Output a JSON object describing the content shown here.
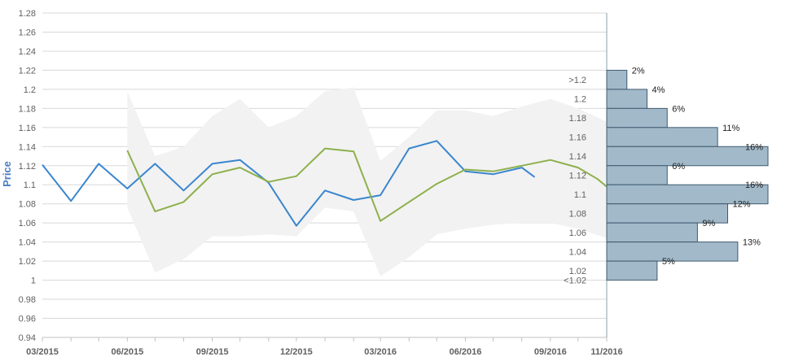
{
  "chart_data": {
    "type": "line",
    "ylabel": "Price",
    "ylim": [
      0.94,
      1.28
    ],
    "yticks": [
      "0.94",
      "0.96",
      "0.98",
      "1",
      "1.02",
      "1.04",
      "1.06",
      "1.08",
      "1.1",
      "1.12",
      "1.14",
      "1.16",
      "1.18",
      "1.2",
      "1.22",
      "1.24",
      "1.26",
      "1.28"
    ],
    "xlim": [
      "2015-03-01",
      "2016-11-01"
    ],
    "xtick_labels": [
      {
        "date": "2015-03-01",
        "label": "03/2015"
      },
      {
        "date": "2015-06-01",
        "label": "06/2015"
      },
      {
        "date": "2015-09-01",
        "label": "09/2015"
      },
      {
        "date": "2015-12-01",
        "label": "12/2015"
      },
      {
        "date": "2016-03-01",
        "label": "03/2016"
      },
      {
        "date": "2016-06-01",
        "label": "06/2016"
      },
      {
        "date": "2016-09-01",
        "label": "09/2016"
      },
      {
        "date": "2016-11-01",
        "label": "11/2016"
      }
    ],
    "grid": true,
    "series": [
      {
        "color": "#3a86cf",
        "points": [
          {
            "x": "2015-03-01",
            "y": 1.121
          },
          {
            "x": "2015-04-01",
            "y": 1.083
          },
          {
            "x": "2015-05-01",
            "y": 1.122
          },
          {
            "x": "2015-06-01",
            "y": 1.096
          },
          {
            "x": "2015-07-01",
            "y": 1.122
          },
          {
            "x": "2015-08-01",
            "y": 1.094
          },
          {
            "x": "2015-09-01",
            "y": 1.122
          },
          {
            "x": "2015-10-01",
            "y": 1.126
          },
          {
            "x": "2015-11-01",
            "y": 1.102
          },
          {
            "x": "2015-12-01",
            "y": 1.057
          },
          {
            "x": "2016-01-01",
            "y": 1.094
          },
          {
            "x": "2016-02-01",
            "y": 1.084
          },
          {
            "x": "2016-03-01",
            "y": 1.089
          },
          {
            "x": "2016-04-01",
            "y": 1.138
          },
          {
            "x": "2016-05-01",
            "y": 1.146
          },
          {
            "x": "2016-06-01",
            "y": 1.114
          },
          {
            "x": "2016-07-01",
            "y": 1.111
          },
          {
            "x": "2016-08-01",
            "y": 1.118
          },
          {
            "x": "2016-08-15",
            "y": 1.108
          }
        ]
      },
      {
        "color": "#8db04c",
        "points": [
          {
            "x": "2015-06-01",
            "y": 1.136
          },
          {
            "x": "2015-07-01",
            "y": 1.072
          },
          {
            "x": "2015-08-01",
            "y": 1.082
          },
          {
            "x": "2015-09-01",
            "y": 1.111
          },
          {
            "x": "2015-10-01",
            "y": 1.118
          },
          {
            "x": "2015-11-01",
            "y": 1.103
          },
          {
            "x": "2015-12-01",
            "y": 1.109
          },
          {
            "x": "2016-01-01",
            "y": 1.138
          },
          {
            "x": "2016-02-01",
            "y": 1.135
          },
          {
            "x": "2016-03-01",
            "y": 1.062
          },
          {
            "x": "2016-04-01",
            "y": 1.082
          },
          {
            "x": "2016-05-01",
            "y": 1.101
          },
          {
            "x": "2016-06-01",
            "y": 1.116
          },
          {
            "x": "2016-07-01",
            "y": 1.114
          },
          {
            "x": "2016-08-01",
            "y": 1.12
          },
          {
            "x": "2016-09-01",
            "y": 1.126
          },
          {
            "x": "2016-10-01",
            "y": 1.118
          },
          {
            "x": "2016-10-22",
            "y": 1.106
          },
          {
            "x": "2016-11-01",
            "y": 1.098
          }
        ]
      }
    ],
    "band": {
      "color": "#f2f2f2",
      "points": [
        {
          "x": "2015-06-01",
          "hi": 1.198,
          "lo": 1.076
        },
        {
          "x": "2015-07-01",
          "hi": 1.13,
          "lo": 1.008
        },
        {
          "x": "2015-08-01",
          "hi": 1.14,
          "lo": 1.022
        },
        {
          "x": "2015-09-01",
          "hi": 1.172,
          "lo": 1.046
        },
        {
          "x": "2015-10-01",
          "hi": 1.19,
          "lo": 1.046
        },
        {
          "x": "2015-11-01",
          "hi": 1.16,
          "lo": 1.048
        },
        {
          "x": "2015-12-01",
          "hi": 1.172,
          "lo": 1.046
        },
        {
          "x": "2016-01-01",
          "hi": 1.198,
          "lo": 1.076
        },
        {
          "x": "2016-02-01",
          "hi": 1.202,
          "lo": 1.072
        },
        {
          "x": "2016-03-01",
          "hi": 1.125,
          "lo": 1.004
        },
        {
          "x": "2016-04-01",
          "hi": 1.15,
          "lo": 1.024
        },
        {
          "x": "2016-05-01",
          "hi": 1.178,
          "lo": 1.048
        },
        {
          "x": "2016-06-01",
          "hi": 1.178,
          "lo": 1.054
        },
        {
          "x": "2016-07-01",
          "hi": 1.172,
          "lo": 1.058
        },
        {
          "x": "2016-08-01",
          "hi": 1.182,
          "lo": 1.06
        },
        {
          "x": "2016-09-01",
          "hi": 1.19,
          "lo": 1.06
        },
        {
          "x": "2016-10-01",
          "hi": 1.18,
          "lo": 1.054
        },
        {
          "x": "2016-11-01",
          "hi": 1.166,
          "lo": 1.044
        }
      ]
    },
    "histogram": {
      "type": "bar",
      "orientation": "horizontal",
      "bar_color": "#a2b9c9",
      "bar_border": "#3f5b70",
      "bins": [
        {
          "label": ">1.2",
          "y_low": 1.2,
          "y_high": 1.22,
          "value": 2,
          "pct": "2%"
        },
        {
          "label": "1.2",
          "y_low": 1.18,
          "y_high": 1.2,
          "value": 4,
          "pct": "4%"
        },
        {
          "label": "1.18",
          "y_low": 1.16,
          "y_high": 1.18,
          "value": 6,
          "pct": "6%"
        },
        {
          "label": "1.16",
          "y_low": 1.14,
          "y_high": 1.16,
          "value": 11,
          "pct": "11%"
        },
        {
          "label": "1.14",
          "y_low": 1.12,
          "y_high": 1.14,
          "value": 16,
          "pct": "16%"
        },
        {
          "label": "1.12",
          "y_low": 1.1,
          "y_high": 1.12,
          "value": 6,
          "pct": "6%"
        },
        {
          "label": "1.1",
          "y_low": 1.08,
          "y_high": 1.1,
          "value": 16,
          "pct": "16%"
        },
        {
          "label": "1.08",
          "y_low": 1.06,
          "y_high": 1.08,
          "value": 12,
          "pct": "12%"
        },
        {
          "label": "1.06",
          "y_low": 1.04,
          "y_high": 1.06,
          "value": 9,
          "pct": "9%"
        },
        {
          "label": "1.04",
          "y_low": 1.02,
          "y_high": 1.04,
          "value": 13,
          "pct": "13%"
        },
        {
          "label": "1.02",
          "y_low": 1.0,
          "y_high": 1.02,
          "value": 5,
          "pct": "5%"
        },
        {
          "label": "<1.02",
          "y_low": 1.0,
          "y_high": 1.0,
          "value": 0,
          "pct": ""
        }
      ]
    }
  }
}
